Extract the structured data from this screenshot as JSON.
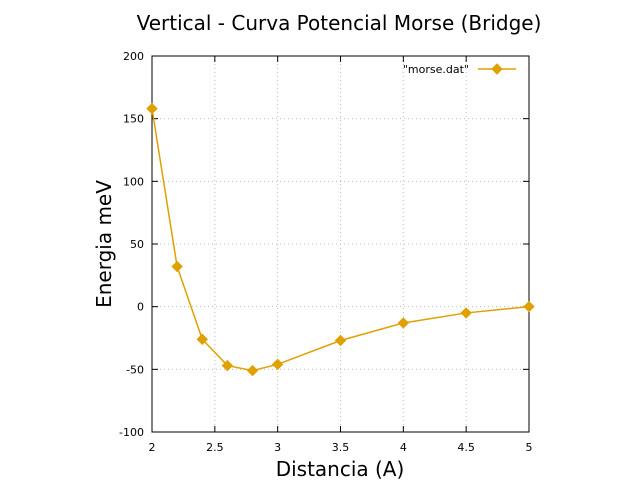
{
  "chart_data": {
    "type": "line",
    "title": "Vertical - Curva Potencial Morse (Bridge)",
    "xlabel": "Distancia (A)",
    "ylabel": "Energia meV",
    "xlim": [
      2,
      5
    ],
    "ylim": [
      -100,
      200
    ],
    "xticks": [
      "2",
      "2.5",
      "3",
      "3.5",
      "4",
      "4.5",
      "5"
    ],
    "yticks": [
      "200",
      "150",
      "100",
      "50",
      "0",
      "-50",
      "-100"
    ],
    "grid": true,
    "legend_position": "top-right",
    "series": [
      {
        "name": "\"morse.dat\"",
        "color": "#e0a000",
        "marker": "diamond",
        "x": [
          2.0,
          2.2,
          2.4,
          2.6,
          2.8,
          3.0,
          3.5,
          4.0,
          4.5,
          5.0
        ],
        "y": [
          158,
          32,
          -26,
          -47,
          -51,
          -46,
          -27,
          -13,
          -5,
          0
        ]
      }
    ]
  }
}
